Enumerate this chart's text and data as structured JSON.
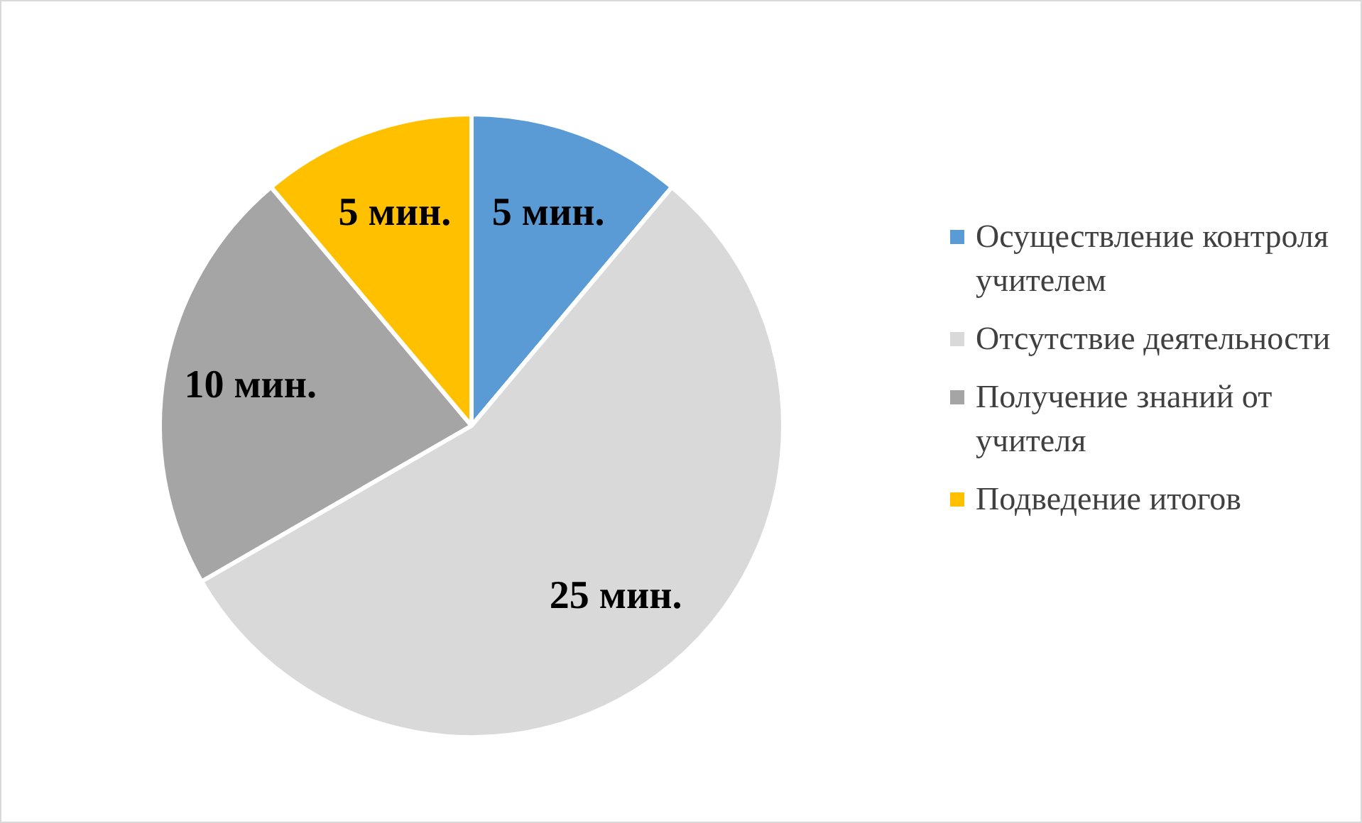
{
  "chart_data": {
    "type": "pie",
    "categories": [
      "Осуществление контроля учителем",
      "Отсутствие деятельности",
      "Получение знаний от учителя",
      "Подведение итогов"
    ],
    "values": [
      5,
      25,
      10,
      5
    ],
    "colors": [
      "#5b9bd5",
      "#d9d9d9",
      "#a5a5a5",
      "#ffc000"
    ],
    "value_labels": [
      "5 мин.",
      "25 мин.",
      "10 мин.",
      "5 мин."
    ],
    "legend": "right"
  }
}
